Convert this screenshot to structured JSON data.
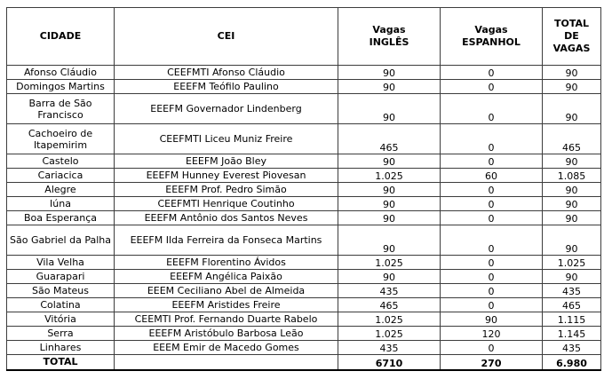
{
  "table": {
    "header": {
      "cidade": "CIDADE",
      "cei": "CEI",
      "vagas_ingles": "Vagas\nINGLÊS",
      "vagas_espanhol": "Vagas\nESPANHOL",
      "total_de_vagas": "TOTAL\nDE\nVAGAS"
    },
    "rows": [
      {
        "cidade": "Afonso Cláudio",
        "cei": "CEEFMTI Afonso Cláudio",
        "ingles": "90",
        "espanhol": "0",
        "total": "90"
      },
      {
        "cidade": "Domingos Martins",
        "cei": "EEEFM Teófilo Paulino",
        "ingles": "90",
        "espanhol": "0",
        "total": "90"
      },
      {
        "cidade": "Barra de São Francisco",
        "cei": "EEEFM Governador Lindenberg",
        "ingles": "90",
        "espanhol": "0",
        "total": "90"
      },
      {
        "cidade": "Cachoeiro de Itapemirim",
        "cei": "CEEFMTI Liceu Muniz Freire",
        "ingles": "465",
        "espanhol": "0",
        "total": "465"
      },
      {
        "cidade": "Castelo",
        "cei": "EEEFM João Bley",
        "ingles": "90",
        "espanhol": "0",
        "total": "90"
      },
      {
        "cidade": "Cariacica",
        "cei": "EEEFM Hunney Everest Piovesan",
        "ingles": "1.025",
        "espanhol": "60",
        "total": "1.085"
      },
      {
        "cidade": "Alegre",
        "cei": "EEEFM Prof. Pedro Simão",
        "ingles": "90",
        "espanhol": "0",
        "total": "90"
      },
      {
        "cidade": "Iúna",
        "cei": "CEEFMTI Henrique Coutinho",
        "ingles": "90",
        "espanhol": "0",
        "total": "90"
      },
      {
        "cidade": "Boa Esperança",
        "cei": "EEEFM Antônio dos Santos Neves",
        "ingles": "90",
        "espanhol": "0",
        "total": "90"
      },
      {
        "cidade": "São Gabriel da Palha",
        "cei": "EEEFM Ilda Ferreira da Fonseca Martins",
        "ingles": "90",
        "espanhol": "0",
        "total": "90"
      },
      {
        "cidade": "Vila Velha",
        "cei": "EEEFM Florentino Ávidos",
        "ingles": "1.025",
        "espanhol": "0",
        "total": "1.025"
      },
      {
        "cidade": "Guarapari",
        "cei": "EEEFM Angélica Paixão",
        "ingles": "90",
        "espanhol": "0",
        "total": "90"
      },
      {
        "cidade": "São Mateus",
        "cei": "EEEM Ceciliano Abel de Almeida",
        "ingles": "435",
        "espanhol": "0",
        "total": "435"
      },
      {
        "cidade": "Colatina",
        "cei": "EEEFM Aristides Freire",
        "ingles": "465",
        "espanhol": "0",
        "total": "465"
      },
      {
        "cidade": "Vitória",
        "cei": "CEEMTI Prof. Fernando Duarte Rabelo",
        "ingles": "1.025",
        "espanhol": "90",
        "total": "1.115"
      },
      {
        "cidade": "Serra",
        "cei": "EEEFM Aristóbulo Barbosa Leão",
        "ingles": "1.025",
        "espanhol": "120",
        "total": "1.145"
      },
      {
        "cidade": "Linhares",
        "cei": "EEEM Emir de Macedo Gomes",
        "ingles": "435",
        "espanhol": "0",
        "total": "435"
      }
    ],
    "total_row": {
      "label": "TOTAL",
      "cei": "",
      "ingles": "6710",
      "espanhol": "270",
      "total": "6.980"
    }
  }
}
